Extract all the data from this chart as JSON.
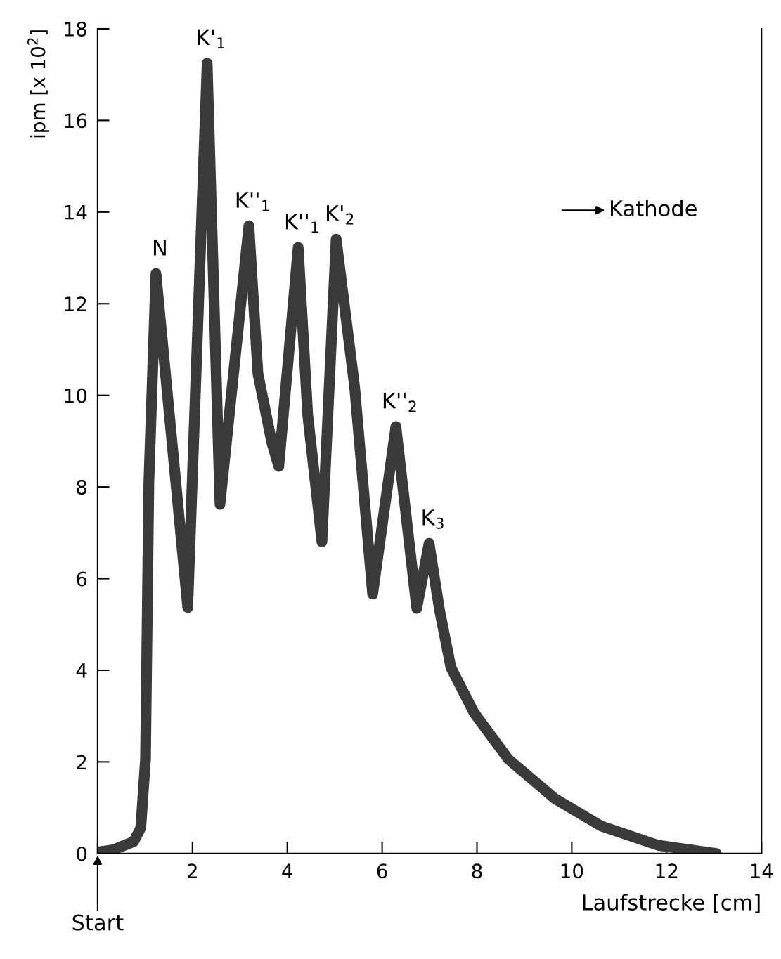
{
  "chart_data": {
    "type": "line",
    "xlabel": "Laufstrecke [cm]",
    "ylabel": "ipm [x 10$^{2}$]",
    "x": [
      0.0,
      0.33,
      0.76,
      0.91,
      1.01,
      1.08,
      1.23,
      1.9,
      2.31,
      2.58,
      3.19,
      3.38,
      3.67,
      3.82,
      4.23,
      4.43,
      4.73,
      5.03,
      5.42,
      5.8,
      6.29,
      6.73,
      6.99,
      7.21,
      7.45,
      7.94,
      8.66,
      9.64,
      10.62,
      11.82,
      13.05
    ],
    "series": [
      {
        "color": "#3a3a3a",
        "values": [
          0.03,
          0.08,
          0.26,
          0.56,
          2.06,
          8.08,
          12.66,
          5.37,
          17.25,
          7.62,
          13.7,
          10.48,
          8.98,
          8.45,
          13.23,
          9.58,
          6.8,
          13.41,
          10.18,
          5.66,
          9.32,
          5.35,
          6.77,
          5.32,
          4.06,
          3.07,
          2.06,
          1.2,
          0.6,
          0.18,
          0.0
        ]
      }
    ],
    "xlim": [
      0,
      14
    ],
    "ylim": [
      0,
      18
    ],
    "xticks": [
      {
        "value": 0,
        "label": null
      },
      2,
      4,
      6,
      8,
      10,
      12,
      14
    ],
    "yticks": [
      0,
      2,
      4,
      6,
      8,
      10,
      12,
      14,
      16,
      18
    ],
    "grid": false,
    "line_style": "solid",
    "annotations": [
      {
        "text": "N",
        "x": 1.23,
        "y": 12.66
      },
      {
        "text": "K'$_{1}$",
        "x": 2.31,
        "y": 17.25
      },
      {
        "text": "K''$_{1}$",
        "x": 3.19,
        "y": 13.7
      },
      {
        "text": "K''$_{1}$",
        "x": 4.23,
        "y": 13.23
      },
      {
        "text": "K'$_{2}$",
        "x": 5.03,
        "y": 13.41
      },
      {
        "text": "K''$_{2}$",
        "x": 6.29,
        "y": 9.32
      },
      {
        "text": "K$_{3}$",
        "x": 6.99,
        "y": 6.77
      },
      {
        "text": "Start",
        "x": 0,
        "y": 0
      },
      "Kathode"
    ]
  }
}
